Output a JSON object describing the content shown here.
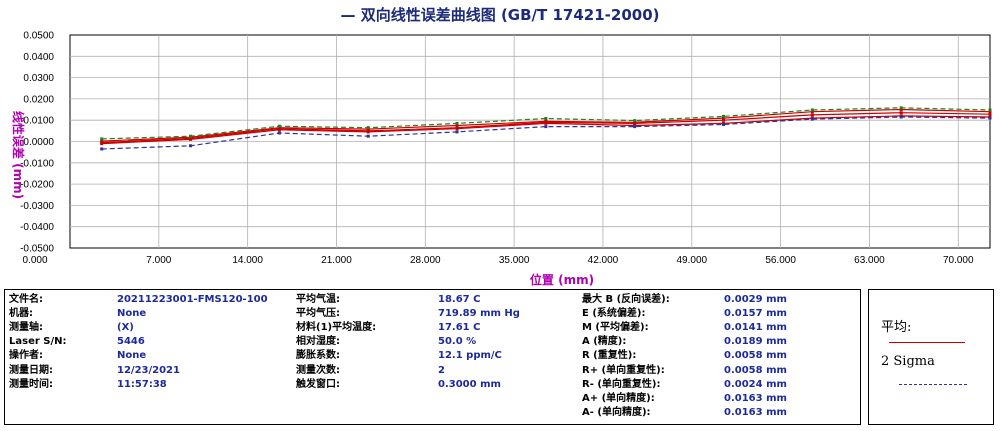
{
  "chart_data": {
    "type": "line",
    "title": "— 双向线性误差曲线图  (GB/T 17421-2000)",
    "xlabel": "位置 (mm)",
    "ylabel": "线性误差 (mm)",
    "xlim": [
      0,
      72.5
    ],
    "ylim": [
      -0.05,
      0.05
    ],
    "x_ticks": [
      "0.000",
      "7.000",
      "14.000",
      "21.000",
      "28.000",
      "35.000",
      "42.000",
      "49.000",
      "56.000",
      "63.000",
      "70.000"
    ],
    "y_ticks": [
      "0.0500",
      "0.0400",
      "0.0300",
      "0.0200",
      "0.0100",
      "0.0000",
      "-0.0100",
      "-0.0200",
      "-0.0300",
      "-0.0400",
      "-0.0500"
    ],
    "grid": true,
    "series": [
      {
        "name": "平均",
        "style": "solid",
        "color": "#cc0000",
        "x": [
          2.5,
          9.5,
          16.5,
          23.5,
          30.5,
          37.5,
          44.5,
          51.5,
          58.5,
          65.5,
          72.5
        ],
        "values": [
          -0.0005,
          0.0015,
          0.006,
          0.005,
          0.0065,
          0.009,
          0.0085,
          0.01,
          0.0125,
          0.0135,
          0.0128
        ]
      },
      {
        "name": "",
        "style": "solid",
        "color": "#cc0000",
        "x": [
          2.5,
          9.5,
          16.5,
          23.5,
          30.5,
          37.5,
          44.5,
          51.5,
          58.5,
          65.5,
          72.5
        ],
        "values": [
          0.0002,
          0.002,
          0.0065,
          0.0058,
          0.0075,
          0.0095,
          0.009,
          0.011,
          0.014,
          0.015,
          0.014
        ]
      },
      {
        "name": "",
        "style": "solid",
        "color": "#cc0000",
        "x": [
          2.5,
          9.5,
          16.5,
          23.5,
          30.5,
          37.5,
          44.5,
          51.5,
          58.5,
          65.5,
          72.5
        ],
        "values": [
          -0.001,
          0.001,
          0.0055,
          0.0045,
          0.006,
          0.0085,
          0.0075,
          0.0085,
          0.011,
          0.012,
          0.0115
        ]
      },
      {
        "name": "2 Sigma",
        "style": "dashed",
        "color": "#3030a0",
        "x": [
          2.5,
          9.5,
          16.5,
          23.5,
          30.5,
          37.5,
          44.5,
          51.5,
          58.5,
          65.5,
          72.5
        ],
        "values": [
          -0.0035,
          -0.002,
          0.004,
          0.0025,
          0.0045,
          0.007,
          0.007,
          0.008,
          0.0105,
          0.0115,
          0.011
        ]
      },
      {
        "name": "",
        "style": "dashed",
        "color": "#208020",
        "x": [
          2.5,
          9.5,
          16.5,
          23.5,
          30.5,
          37.5,
          44.5,
          51.5,
          58.5,
          65.5,
          72.5
        ],
        "values": [
          0.0012,
          0.0025,
          0.0072,
          0.0065,
          0.0085,
          0.0108,
          0.0098,
          0.0118,
          0.0148,
          0.0158,
          0.0148
        ]
      }
    ]
  },
  "info": {
    "col1": [
      {
        "label": "文件名:",
        "value": "20211223001-FMS120-100"
      },
      {
        "label": "机器:",
        "value": "None"
      },
      {
        "label": "测量轴:",
        "value": "(X)"
      },
      {
        "label": "Laser S/N:",
        "value": "5446"
      },
      {
        "label": "操作者:",
        "value": "None"
      },
      {
        "label": "测量日期:",
        "value": "12/23/2021"
      },
      {
        "label": "测量时间:",
        "value": "11:57:38"
      }
    ],
    "col2": [
      {
        "label": "平均气温:",
        "value": "18.67 C"
      },
      {
        "label": "平均气压:",
        "value": "719.89 mm Hg"
      },
      {
        "label": "材料(1)平均温度:",
        "value": "17.61 C"
      },
      {
        "label": "相对湿度:",
        "value": "50.0 %"
      },
      {
        "label": "膨胀系数:",
        "value": "12.1 ppm/C"
      },
      {
        "label": "测量次数:",
        "value": "2"
      },
      {
        "label": "触发窗口:",
        "value": "0.3000 mm"
      }
    ],
    "col3": [
      {
        "label": "最大 B (反向误差):",
        "value": "0.0029 mm"
      },
      {
        "label": "E (系统偏差):",
        "value": "0.0157 mm"
      },
      {
        "label": "M (平均偏差):",
        "value": "0.0141 mm"
      },
      {
        "label": "A (精度):",
        "value": "0.0189 mm"
      },
      {
        "label": "R (重复性):",
        "value": "0.0058 mm"
      },
      {
        "label": "R+ (单向重复性):",
        "value": "0.0058 mm"
      },
      {
        "label": "R- (单向重复性):",
        "value": "0.0024 mm"
      },
      {
        "label": "A+ (单向精度):",
        "value": "0.0163 mm"
      },
      {
        "label": "A- (单向精度):",
        "value": "0.0163 mm"
      }
    ]
  },
  "legend": {
    "mean_label": "平均:",
    "sigma_label": "2 Sigma",
    "mean_color": "#cc0000",
    "sigma_color": "#3030a0"
  }
}
